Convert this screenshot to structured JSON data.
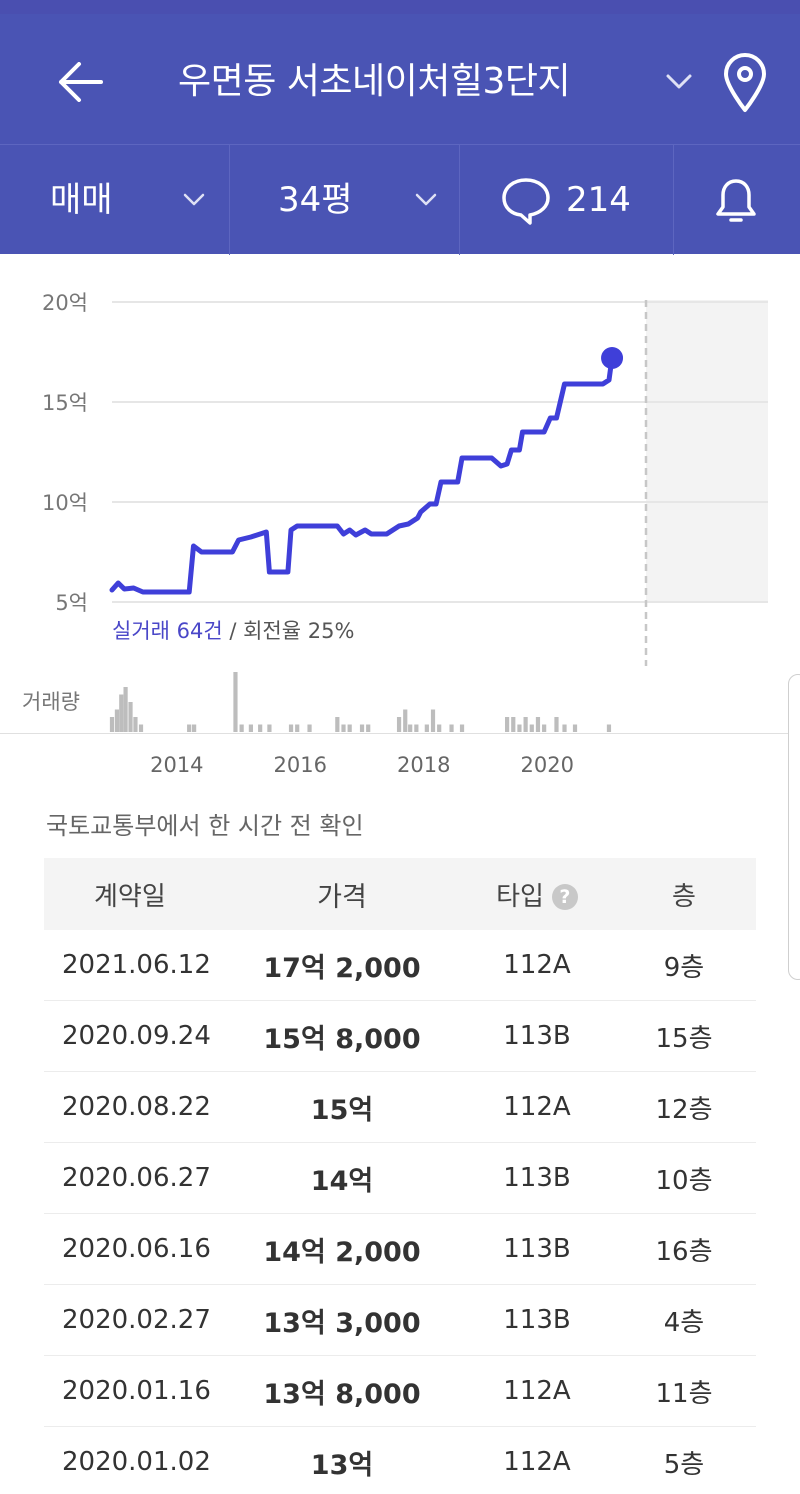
{
  "header": {
    "title": "우면동 서초네이처힐3단지"
  },
  "filters": {
    "trade_type": "매매",
    "size": "34평",
    "comment_count": "214"
  },
  "chart_data": {
    "type": "line",
    "y_ticks": [
      "20억",
      "15억",
      "10억",
      "5억"
    ],
    "ylim": [
      5,
      20
    ],
    "x_ticks": [
      {
        "year": 2014,
        "label": "2014"
      },
      {
        "year": 2016,
        "label": "2016"
      },
      {
        "year": 2018,
        "label": "2018"
      },
      {
        "year": 2020,
        "label": "2020"
      }
    ],
    "xlim": [
      2012.95,
      2021.6
    ],
    "deal_info_label": "실거래 64건",
    "turnover_label": " / 회전율 25%",
    "volume_label": "거래량",
    "series": [
      {
        "points": [
          [
            2012.95,
            5.6
          ],
          [
            2013.05,
            5.95
          ],
          [
            2013.15,
            5.65
          ],
          [
            2013.3,
            5.7
          ],
          [
            2013.45,
            5.5
          ],
          [
            2014.2,
            5.5
          ],
          [
            2014.27,
            7.8
          ],
          [
            2014.4,
            7.5
          ],
          [
            2014.9,
            7.5
          ],
          [
            2015.0,
            8.1
          ],
          [
            2015.2,
            8.25
          ],
          [
            2015.45,
            8.5
          ],
          [
            2015.5,
            6.5
          ],
          [
            2015.8,
            6.5
          ],
          [
            2015.85,
            8.6
          ],
          [
            2015.95,
            8.8
          ],
          [
            2016.6,
            8.8
          ],
          [
            2016.7,
            8.4
          ],
          [
            2016.8,
            8.6
          ],
          [
            2016.9,
            8.35
          ],
          [
            2017.05,
            8.6
          ],
          [
            2017.15,
            8.4
          ],
          [
            2017.4,
            8.4
          ],
          [
            2017.6,
            8.8
          ],
          [
            2017.75,
            8.9
          ],
          [
            2017.9,
            9.2
          ],
          [
            2017.95,
            9.5
          ],
          [
            2018.1,
            9.9
          ],
          [
            2018.2,
            9.9
          ],
          [
            2018.28,
            11.0
          ],
          [
            2018.55,
            11.0
          ],
          [
            2018.62,
            12.2
          ],
          [
            2019.1,
            12.2
          ],
          [
            2019.25,
            11.8
          ],
          [
            2019.35,
            11.9
          ],
          [
            2019.42,
            12.6
          ],
          [
            2019.55,
            12.6
          ],
          [
            2019.6,
            13.5
          ],
          [
            2019.95,
            13.5
          ],
          [
            2020.05,
            14.2
          ],
          [
            2020.15,
            14.2
          ],
          [
            2020.28,
            15.9
          ],
          [
            2020.9,
            15.9
          ],
          [
            2021.0,
            16.1
          ],
          [
            2021.05,
            17.2
          ]
        ]
      }
    ],
    "volume": [
      [
        2012.95,
        2
      ],
      [
        2013.03,
        3
      ],
      [
        2013.1,
        5
      ],
      [
        2013.17,
        6
      ],
      [
        2013.25,
        4
      ],
      [
        2013.33,
        2
      ],
      [
        2013.42,
        1
      ],
      [
        2014.2,
        1
      ],
      [
        2014.28,
        1
      ],
      [
        2014.95,
        8
      ],
      [
        2015.05,
        1
      ],
      [
        2015.2,
        1
      ],
      [
        2015.35,
        1
      ],
      [
        2015.5,
        1
      ],
      [
        2015.85,
        1
      ],
      [
        2015.95,
        1
      ],
      [
        2016.15,
        1
      ],
      [
        2016.6,
        2
      ],
      [
        2016.7,
        1
      ],
      [
        2016.8,
        1
      ],
      [
        2017.0,
        1
      ],
      [
        2017.1,
        1
      ],
      [
        2017.6,
        2
      ],
      [
        2017.7,
        3
      ],
      [
        2017.78,
        1
      ],
      [
        2017.88,
        1
      ],
      [
        2018.05,
        1
      ],
      [
        2018.15,
        3
      ],
      [
        2018.25,
        1
      ],
      [
        2018.45,
        1
      ],
      [
        2018.62,
        1
      ],
      [
        2019.35,
        2
      ],
      [
        2019.45,
        2
      ],
      [
        2019.55,
        1
      ],
      [
        2019.65,
        2
      ],
      [
        2019.75,
        1
      ],
      [
        2019.85,
        2
      ],
      [
        2019.95,
        1
      ],
      [
        2020.15,
        2
      ],
      [
        2020.28,
        1
      ],
      [
        2020.45,
        1
      ],
      [
        2021.0,
        1
      ]
    ],
    "future_shaded": true,
    "grid": true
  },
  "source_note": "국토교통부에서 한 시간 전 확인",
  "table": {
    "columns": [
      "계약일",
      "가격",
      "타입",
      "층"
    ],
    "help_glyph": "?",
    "rows": [
      {
        "date": "2021.06.12",
        "price": "17억 2,000",
        "type": "112A",
        "floor": "9층"
      },
      {
        "date": "2020.09.24",
        "price": "15억 8,000",
        "type": "113B",
        "floor": "15층"
      },
      {
        "date": "2020.08.22",
        "price": "15억",
        "type": "112A",
        "floor": "12층"
      },
      {
        "date": "2020.06.27",
        "price": "14억",
        "type": "113B",
        "floor": "10층"
      },
      {
        "date": "2020.06.16",
        "price": "14억 2,000",
        "type": "113B",
        "floor": "16층"
      },
      {
        "date": "2020.02.27",
        "price": "13억 3,000",
        "type": "113B",
        "floor": "4층"
      },
      {
        "date": "2020.01.16",
        "price": "13억 8,000",
        "type": "112A",
        "floor": "11층"
      },
      {
        "date": "2020.01.02",
        "price": "13억",
        "type": "112A",
        "floor": "5층"
      }
    ]
  },
  "colors": {
    "brand": "#4a54b4",
    "line": "#3f3fd9",
    "volume_bar": "#bdbdbd",
    "grid": "#e6e6e6"
  },
  "icons": {
    "back": "arrow-left-icon",
    "dropdown": "chevron-down-icon",
    "location": "map-pin-icon",
    "comments": "chat-bubble-icon",
    "alert": "bell-icon",
    "help": "question-circle-icon"
  }
}
